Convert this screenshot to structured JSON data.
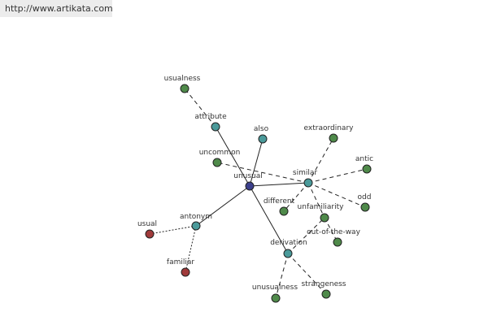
{
  "header": {
    "url": "http://www.artikata.com"
  },
  "nodes": [
    {
      "label": "unusual",
      "color": "#3b3f8c"
    },
    {
      "label": "attribute",
      "color": "#4a9a9a"
    },
    {
      "label": "usualness",
      "color": "#4f8a4a"
    },
    {
      "label": "also",
      "color": "#4a9a9a"
    },
    {
      "label": "uncommon",
      "color": "#4f8a4a"
    },
    {
      "label": "similar",
      "color": "#4a9a9a"
    },
    {
      "label": "extraordinary",
      "color": "#4f8a4a"
    },
    {
      "label": "antic",
      "color": "#4f8a4a"
    },
    {
      "label": "odd",
      "color": "#4f8a4a"
    },
    {
      "label": "different",
      "color": "#4f8a4a"
    },
    {
      "label": "unfamiliarity",
      "color": "#4f8a4a"
    },
    {
      "label": "out-of-the-way",
      "color": "#4f8a4a"
    },
    {
      "label": "derivation",
      "color": "#4a9a9a"
    },
    {
      "label": "unusualness",
      "color": "#4f8a4a"
    },
    {
      "label": "strangeness",
      "color": "#4f8a4a"
    },
    {
      "label": "antonym",
      "color": "#4a9a9a"
    },
    {
      "label": "usual",
      "color": "#a03a3a"
    },
    {
      "label": "familiar",
      "color": "#a03a3a"
    }
  ]
}
